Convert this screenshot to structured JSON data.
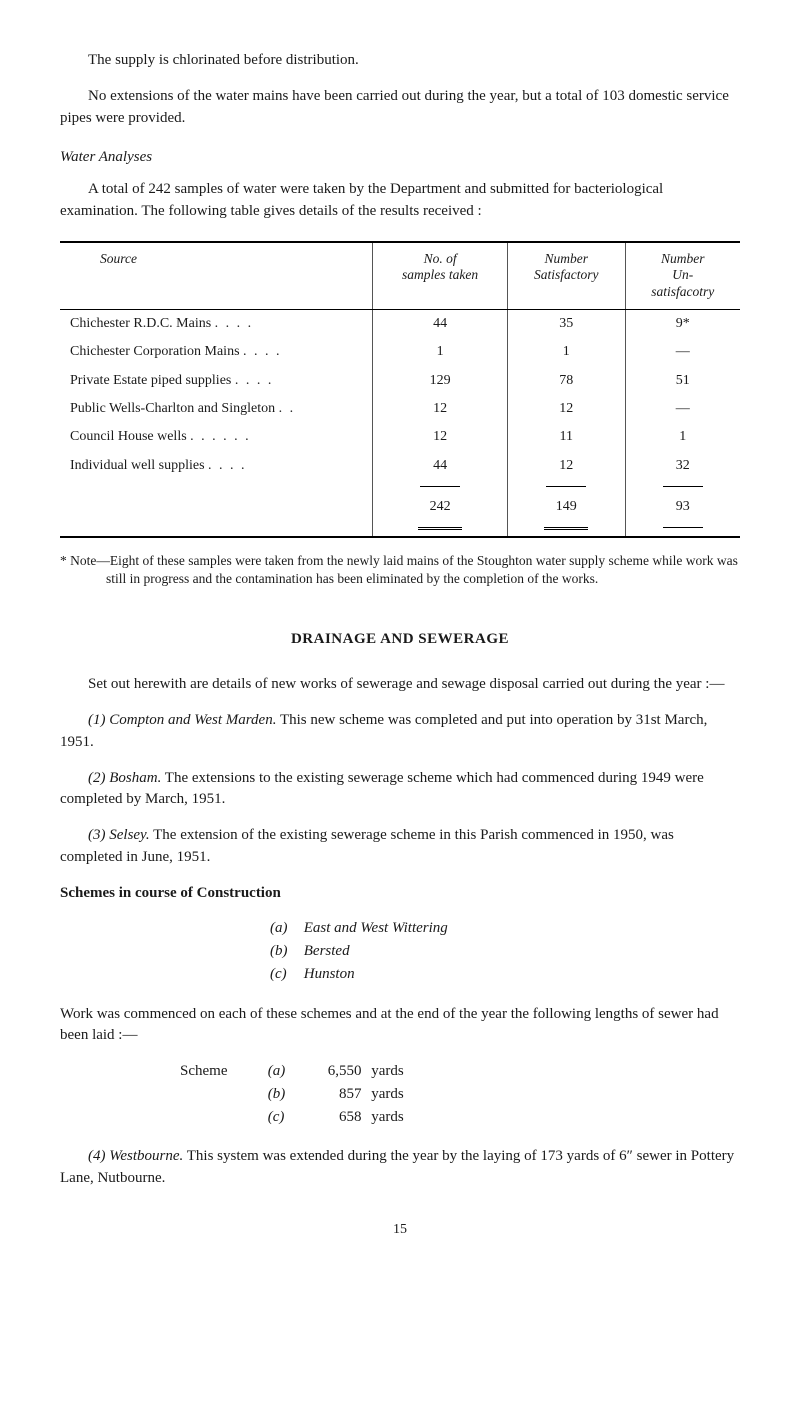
{
  "intro": {
    "p1": "The supply is chlorinated before distribution.",
    "p2": "No extensions of the water mains have been carried out during the year, but a total of 103 domestic service pipes were provided."
  },
  "water_analyses": {
    "heading": "Water Analyses",
    "p1": "A total of 242 samples of water were taken by the Department and submitted for bacteriological examination. The following table gives details of the results received :"
  },
  "table": {
    "headers": {
      "source": "Source",
      "samples": "No. of\nsamples taken",
      "satisfactory": "Number\nSatisfactory",
      "unsatisfactory": "Number\nUn-\nsatisfacotry"
    },
    "rows": [
      {
        "label": "Chichester R.D.C. Mains",
        "dots": ". .    . .",
        "c1": "44",
        "c2": "35",
        "c3": "9*"
      },
      {
        "label": "Chichester Corporation Mains",
        "dots": ". .    . .",
        "c1": "1",
        "c2": "1",
        "c3": "—"
      },
      {
        "label": "Private Estate piped supplies",
        "dots": ". .    . .",
        "c1": "129",
        "c2": "78",
        "c3": "51"
      },
      {
        "label": "Public Wells-Charlton and Singleton",
        "dots": ". .",
        "c1": "12",
        "c2": "12",
        "c3": "—"
      },
      {
        "label": "Council House wells",
        "dots": ". .    . .    . .",
        "c1": "12",
        "c2": "11",
        "c3": "1"
      },
      {
        "label": "Individual well supplies",
        "dots": ". .    . .",
        "c1": "44",
        "c2": "12",
        "c3": "32"
      }
    ],
    "totals": {
      "c1": "242",
      "c2": "149",
      "c3": "93"
    }
  },
  "footnote": {
    "star": "* Note—Eight of these samples were taken from the newly laid mains of the Stoughton water supply scheme while work was still in progress and the contamination has been eliminated by the completion of the works."
  },
  "drainage": {
    "heading": "DRAINAGE AND SEWERAGE",
    "p1": "Set out herewith are details of new works of sewerage and sewage disposal carried out during the year :—",
    "item1_label": "(1) Compton and West Marden.",
    "item1_text": "  This new scheme was completed and put into operation by 31st March, 1951.",
    "item2_label": "(2) Bosham.",
    "item2_text": "  The extensions to the existing sewerage scheme which had commenced during 1949 were completed by March, 1951.",
    "item3_label": "(3) Selsey.",
    "item3_text": "  The extension of the existing sewerage scheme in this Parish commenced in 1950, was completed in June, 1951."
  },
  "schemes": {
    "heading": "Schemes in course of Construction",
    "items": [
      {
        "key": "(a)",
        "val": "East and West Wittering"
      },
      {
        "key": "(b)",
        "val": "Bersted"
      },
      {
        "key": "(c)",
        "val": "Hunston"
      }
    ]
  },
  "work_commenced": {
    "p1": "Work was commenced on each of these schemes and at the end of the year the following lengths of sewer had been laid :—",
    "label": "Scheme",
    "rows": [
      {
        "key": "(a)",
        "val": "6,550",
        "unit": "yards"
      },
      {
        "key": "(b)",
        "val": "857",
        "unit": "yards"
      },
      {
        "key": "(c)",
        "val": "658",
        "unit": "yards"
      }
    ]
  },
  "westbourne": {
    "label": "(4) Westbourne.",
    "text": "  This system was extended during the year by the laying of 173 yards of 6″ sewer in Pottery Lane, Nutbourne."
  },
  "page_number": "15"
}
